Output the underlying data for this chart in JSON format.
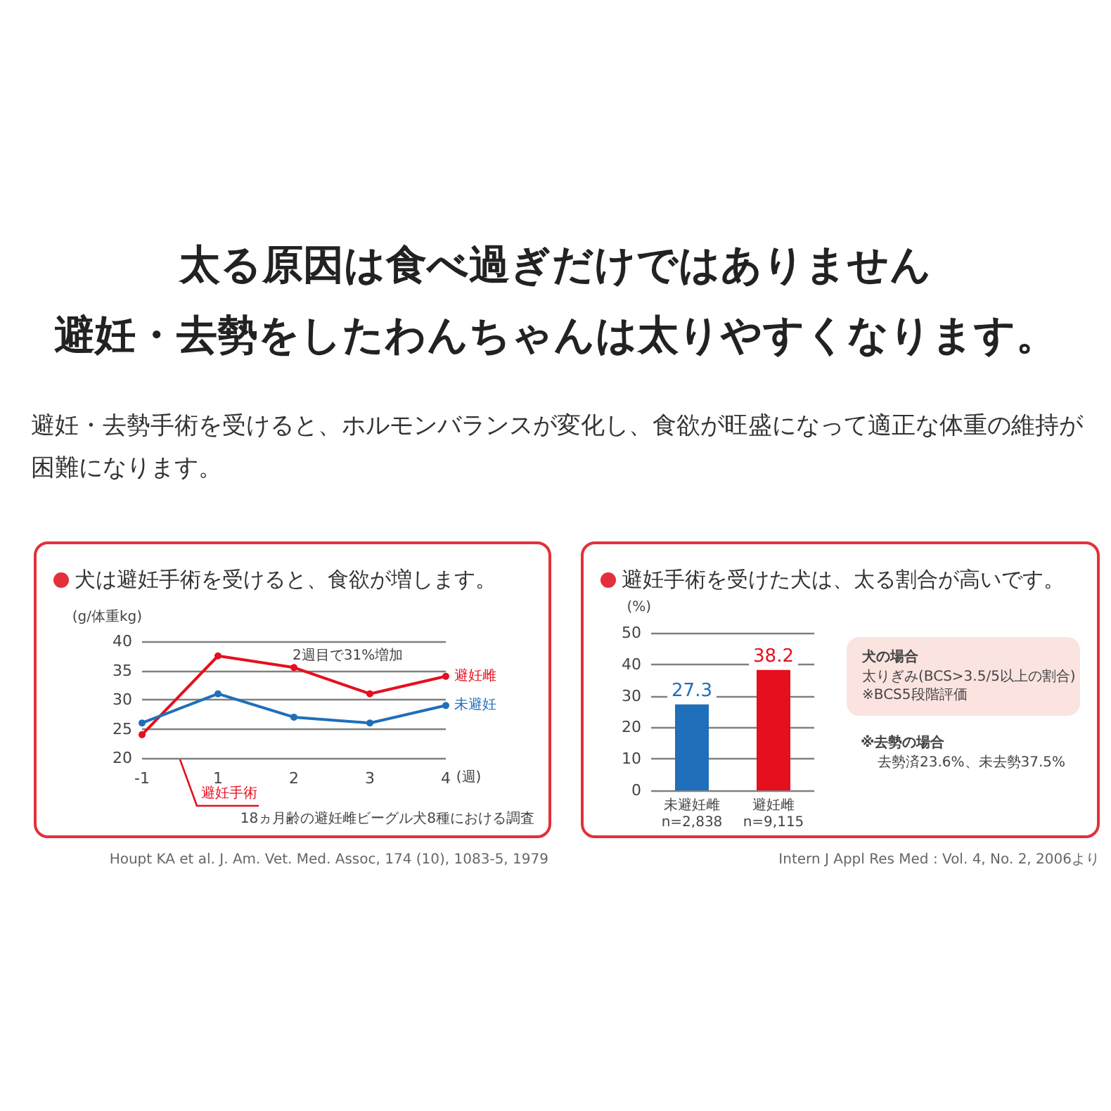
{
  "chart_data": [
    {
      "type": "other",
      "title": "太る原因は食べ過ぎだけではありません",
      "subtitle": "避妊・去勢をしたわんちゃんは太りやすくなります。",
      "annotations": [
        "避妊・去勢手術を受けると、ホルモンバランスが変化し、食欲が旺盛になって適正な体重の維持が困難になります。"
      ]
    },
    {
      "type": "line",
      "title": "犬は避妊手術を受けると、食欲が増します。",
      "ylabel": "(g/体重kg)",
      "xlabel": "(週)",
      "categories": [
        "-1",
        "1",
        "2",
        "3",
        "4"
      ],
      "series": [
        {
          "name": "避妊雌",
          "color": "#e60f1e",
          "values": [
            24,
            37.5,
            35.5,
            31,
            34
          ]
        },
        {
          "name": "未避妊",
          "color": "#1f6fba",
          "values": [
            26,
            31,
            27,
            26,
            29
          ]
        }
      ],
      "ylim": [
        20,
        40
      ],
      "yticks": [
        20,
        25,
        30,
        35,
        40
      ],
      "grid": "y",
      "marker": "circle",
      "line_style": "solid",
      "annotations": [
        "2週目で31%増加",
        "避妊手術",
        "18ヵ月齢の避妊雌ビーグル犬8種における調査",
        "Houpt KA et al. J. Am. Vet. Med. Assoc, 174 (10), 1083-5, 1979"
      ]
    },
    {
      "type": "bar",
      "title": "避妊手術を受けた犬は、太る割合が高いです。",
      "ylabel": "(%)",
      "categories": [
        "未避妊雌\nn=2,838",
        "避妊雌\nn=9,115"
      ],
      "values": [
        27.3,
        38.2
      ],
      "colors": [
        "#1f6fba",
        "#e60f1e"
      ],
      "ylim": [
        0,
        50
      ],
      "yticks": [
        0,
        10,
        20,
        30,
        40,
        50
      ],
      "grid": "y",
      "data_labels": true,
      "annotations": [
        "犬の場合",
        "太りぎみ(BCS>3.5/5以上の割合)",
        "※BCS5段階評価",
        "※去勢の場合",
        "去勢済23.6%、未去勢37.5%",
        "Intern J Appl Res Med : Vol. 4, No. 2, 2006より"
      ]
    }
  ]
}
